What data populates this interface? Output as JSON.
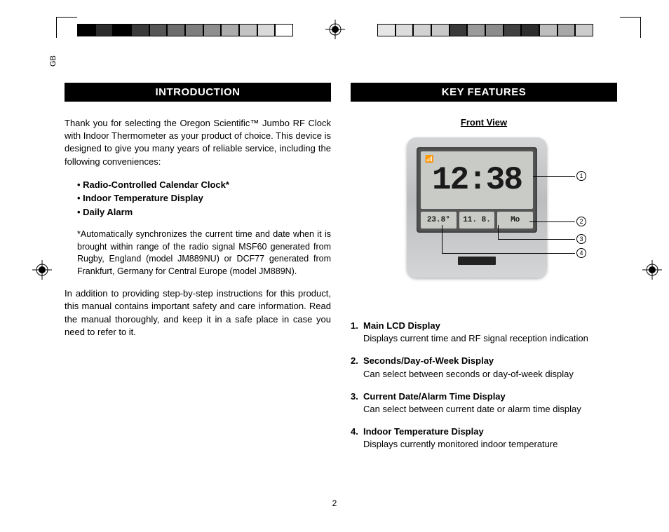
{
  "language_tab": "GB",
  "page_number": "2",
  "colorbar_left": [
    "#000000",
    "#2b2b2b",
    "#000000",
    "#3a3a3a",
    "#565656",
    "#6c6c6c",
    "#7e7e7e",
    "#8e8e8e",
    "#ababab",
    "#c3c3c3",
    "#d9d9d9",
    "#ffffff"
  ],
  "colorbar_right": [
    "#e6e6e6",
    "#dcdcdc",
    "#d2d2d2",
    "#c8c8c8",
    "#3a3a3a",
    "#9a9a9a",
    "#8c8c8c",
    "#404040",
    "#2e2e2e",
    "#bdbdbd",
    "#a8a8a8",
    "#cccccc"
  ],
  "left_col": {
    "heading": "INTRODUCTION",
    "p1": "Thank you for selecting the Oregon Scientific™ Jumbo RF Clock with Indoor Thermometer as your product of choice. This device is designed to give you many years of reliable service, including the following conveniences:",
    "bullets": [
      "Radio-Controlled Calendar Clock*",
      "Indoor Temperature Display",
      "Daily Alarm"
    ],
    "footnote": "*Automatically synchronizes the current time and date when it is brought within range of the radio signal MSF60 generated from Rugby, England (model JM889NU) or DCF77 generated from Frankfurt, Germany for Central Europe (model JM889N).",
    "p2": "In addition to providing step-by-step instructions for this product, this manual contains important safety and care information. Read the manual thoroughly, and keep it in a safe place in case you need to refer to it."
  },
  "right_col": {
    "heading": "KEY FEATURES",
    "front_view_label": "Front View",
    "device": {
      "time": "12:38",
      "temp": "23.8°",
      "date": "11. 8.",
      "day": "Mo"
    },
    "callouts": [
      "1",
      "2",
      "3",
      "4"
    ],
    "features": [
      {
        "num": "1.",
        "title": "Main LCD Display",
        "desc": "Displays current time and RF signal reception indication"
      },
      {
        "num": "2.",
        "title": "Seconds/Day-of-Week Display",
        "desc": "Can select between seconds or day-of-week display"
      },
      {
        "num": "3.",
        "title": "Current Date/Alarm Time Display",
        "desc": "Can select between current date or alarm time display"
      },
      {
        "num": "4.",
        "title": "Indoor Temperature Display",
        "desc": "Displays currently monitored indoor temperature"
      }
    ]
  }
}
